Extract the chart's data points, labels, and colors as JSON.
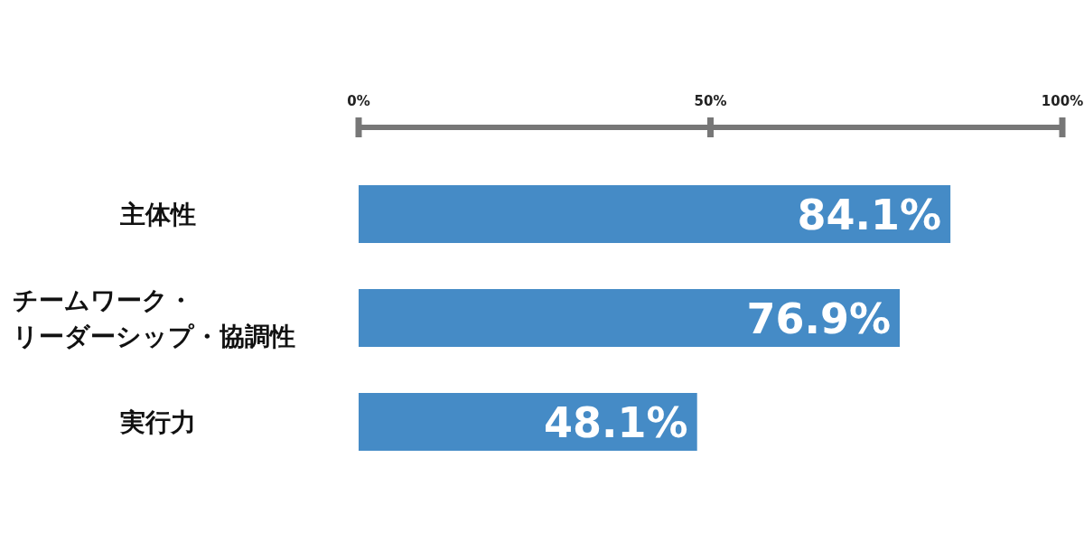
{
  "chart_data": {
    "type": "bar",
    "orientation": "horizontal",
    "categories": [
      "主体性",
      "チームワーク・リーダーシップ・協調性",
      "実行力"
    ],
    "values": [
      84.1,
      76.9,
      48.1
    ],
    "color": "#458bc6",
    "xlim": [
      0,
      100
    ],
    "xticks": [
      {
        "value": 0,
        "label": "0%"
      },
      {
        "value": 50,
        "label": "50%"
      },
      {
        "value": 100,
        "label": "100%"
      }
    ],
    "value_labels": [
      "84.1%",
      "76.9%",
      "48.1%"
    ]
  }
}
